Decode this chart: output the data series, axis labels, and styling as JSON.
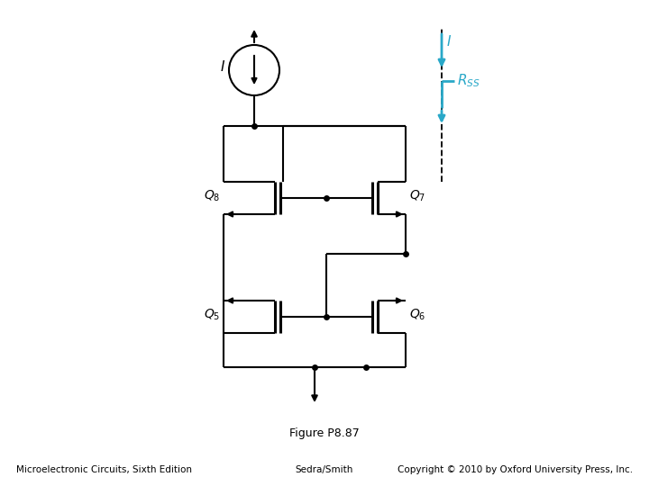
{
  "title": "Figure P8.87",
  "footer_left": "Microelectronic Circuits, Sixth Edition",
  "footer_center": "Sedra/Smith",
  "footer_right": "Copyright © 2010 by Oxford University Press, Inc.",
  "bg_color": "#ffffff",
  "line_color": "#000000",
  "cyan_color": "#29a8c8",
  "label_Q8": "$Q_8$",
  "label_Q7": "$Q_7$",
  "label_Q5": "$Q_5$",
  "label_Q6": "$Q_6$",
  "label_I_src": "$I$",
  "label_I_cyan": "$I$",
  "label_RSS": "$R_{SS}$"
}
